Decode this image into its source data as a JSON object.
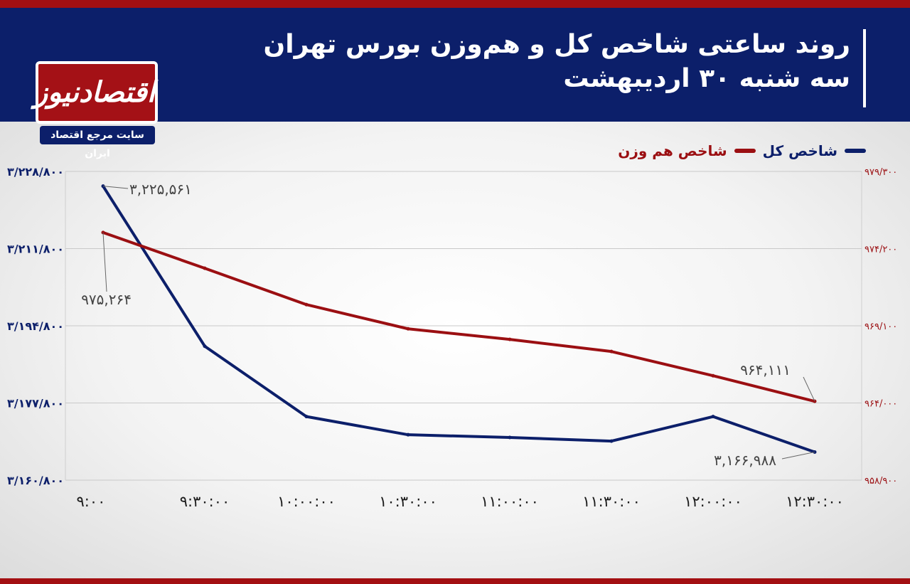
{
  "header": {
    "title_line1": "روند ساعتی شاخص کل و هم‌وزن بورس تهران",
    "title_line2": "سه شنبه ۳۰ اردیبهشت"
  },
  "logo": {
    "name": "اقتصادنیوز",
    "tagline": "سایت مرجع اقتصاد ایران"
  },
  "legend": {
    "main_index": "شاخص کل",
    "equal_weight": "شاخص هم وزن"
  },
  "colors": {
    "main_index": "#0c1f6a",
    "equal_weight": "#9b0f12",
    "header_bg": "#0c1f6a",
    "accent_red": "#a30f12"
  },
  "chart_data": {
    "type": "line",
    "x": [
      "۹:۰۰",
      "۹:۳۰:۰۰",
      "۱۰:۰۰:۰۰",
      "۱۰:۳۰:۰۰",
      "۱۱:۰۰:۰۰",
      "۱۱:۳۰:۰۰",
      "۱۲:۰۰:۰۰",
      "۱۲:۳۰:۰۰"
    ],
    "series": [
      {
        "name": "شاخص کل",
        "axis": "left",
        "values": [
          3225561,
          3190300,
          3174800,
          3170800,
          3170200,
          3169400,
          3174800,
          3166988
        ]
      },
      {
        "name": "شاخص هم وزن",
        "axis": "right",
        "values": [
          975264,
          972900,
          970500,
          968900,
          968200,
          967400,
          965800,
          964111
        ]
      }
    ],
    "left_axis": {
      "ylim": [
        3160800,
        3228800
      ],
      "ticks": [
        {
          "value": 3228800,
          "label": "۳/۲۲۸/۸۰۰"
        },
        {
          "value": 3211800,
          "label": "۳/۲۱۱/۸۰۰"
        },
        {
          "value": 3194800,
          "label": "۳/۱۹۴/۸۰۰"
        },
        {
          "value": 3177800,
          "label": "۳/۱۷۷/۸۰۰"
        },
        {
          "value": 3160800,
          "label": "۳/۱۶۰/۸۰۰"
        }
      ]
    },
    "right_axis": {
      "ylim": [
        958900,
        979300
      ],
      "ticks": [
        {
          "value": 979300,
          "label": "۹۷۹/۳۰۰"
        },
        {
          "value": 974200,
          "label": "۹۷۴/۲۰۰"
        },
        {
          "value": 969100,
          "label": "۹۶۹/۱۰۰"
        },
        {
          "value": 964000,
          "label": "۹۶۴/۰۰۰"
        },
        {
          "value": 958900,
          "label": "۹۵۸/۹۰۰"
        }
      ]
    },
    "annotations": [
      {
        "series": 0,
        "index": 0,
        "text": "۳,۲۲۵,۵۶۱"
      },
      {
        "series": 1,
        "index": 0,
        "text": "۹۷۵,۲۶۴"
      },
      {
        "series": 1,
        "index": 7,
        "text": "۹۶۴,۱۱۱"
      },
      {
        "series": 0,
        "index": 7,
        "text": "۳,۱۶۶,۹۸۸"
      }
    ],
    "grid": true,
    "legend_position": "top-right"
  }
}
